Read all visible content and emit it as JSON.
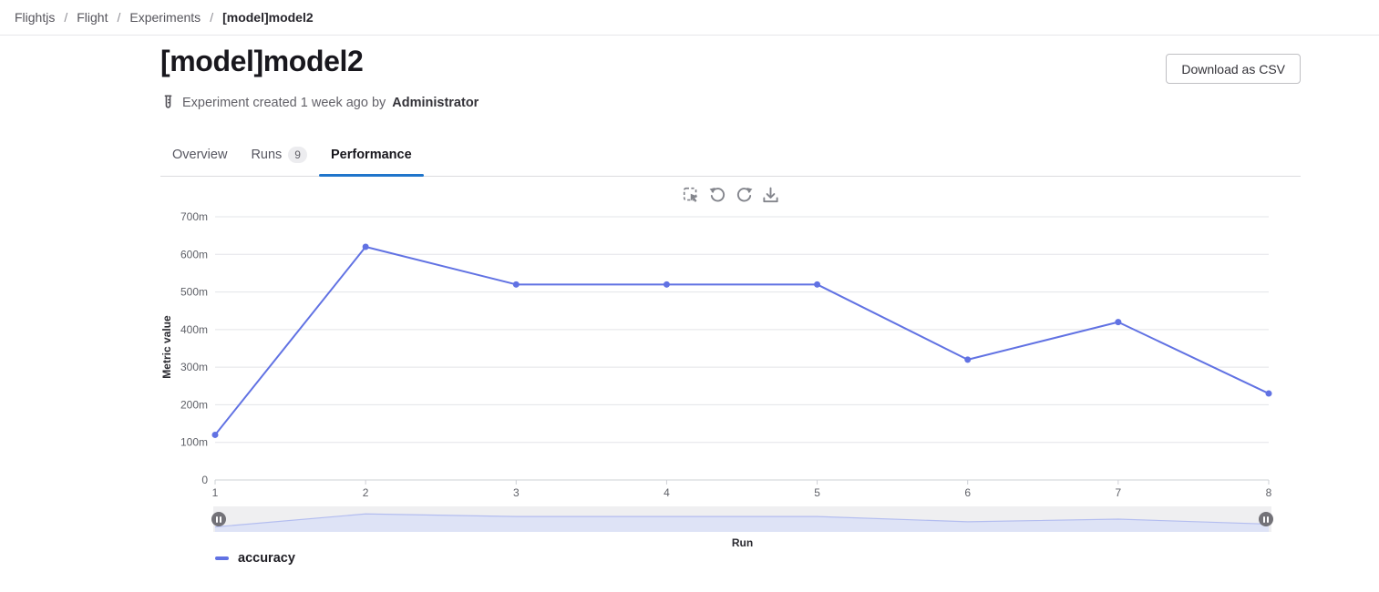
{
  "breadcrumb": {
    "separator": "/",
    "items": [
      "Flightjs",
      "Flight",
      "Experiments",
      "[model]model2"
    ]
  },
  "header": {
    "title": "[model]model2",
    "download_button": "Download as CSV",
    "meta_prefix": "Experiment created 1 week ago by",
    "meta_author": "Administrator"
  },
  "tabs": [
    {
      "label": "Overview",
      "active": false
    },
    {
      "label": "Runs",
      "badge": "9",
      "active": false
    },
    {
      "label": "Performance",
      "active": true
    }
  ],
  "toolbar": {
    "icons": [
      "marquee-zoom-icon",
      "restore-counterclockwise-icon",
      "refresh-clockwise-icon",
      "download-icon"
    ]
  },
  "chart_data": {
    "type": "line",
    "title": "",
    "xlabel": "Run",
    "ylabel": "Metric value",
    "x": [
      1,
      2,
      3,
      4,
      5,
      6,
      7,
      8
    ],
    "series": [
      {
        "name": "accuracy",
        "color": "#6172e3",
        "values": [
          0.12,
          0.62,
          0.52,
          0.52,
          0.52,
          0.32,
          0.42,
          0.23
        ]
      }
    ],
    "ylim": [
      0,
      0.7
    ],
    "y_ticks": [
      {
        "value": 0,
        "label": "0"
      },
      {
        "value": 0.1,
        "label": "100m"
      },
      {
        "value": 0.2,
        "label": "200m"
      },
      {
        "value": 0.3,
        "label": "300m"
      },
      {
        "value": 0.4,
        "label": "400m"
      },
      {
        "value": 0.5,
        "label": "500m"
      },
      {
        "value": 0.6,
        "label": "600m"
      },
      {
        "value": 0.7,
        "label": "700m"
      }
    ],
    "grid": true,
    "legend_position": "bottom-left",
    "has_range_slider": true
  },
  "colors": {
    "accent_blue": "#1f75cb",
    "line": "#6172e3",
    "grid": "#e3e4e8",
    "axis": "#ced0d6",
    "tick_text": "#5f6168",
    "slider_bg": "#efeff1",
    "slider_area_fill": "#dee3f6",
    "slider_area_stroke": "#b3bdf0",
    "slider_handle": "#737278",
    "icon_gray": "#83858c"
  }
}
